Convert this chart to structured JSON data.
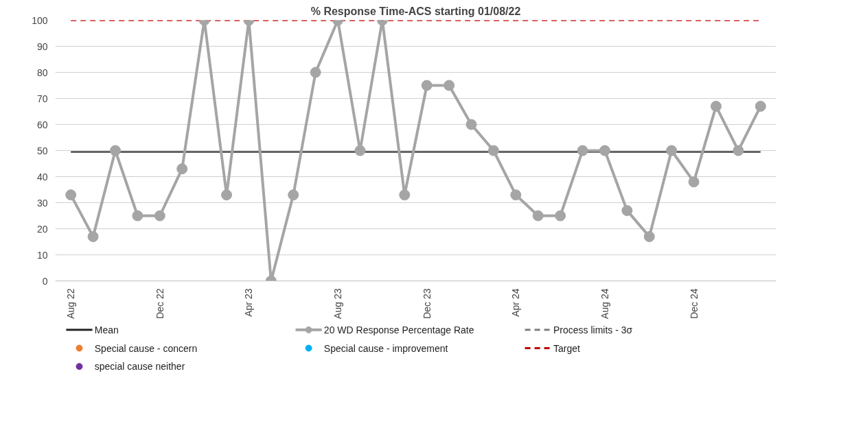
{
  "chart_data": {
    "type": "line",
    "title": "% Response Time-ACS starting 01/08/22",
    "categories": [
      "Aug 22",
      null,
      null,
      null,
      "Dec 22",
      null,
      null,
      null,
      "Apr 23",
      null,
      null,
      null,
      "Aug 23",
      null,
      null,
      null,
      "Dec 23",
      null,
      null,
      null,
      "Apr 24",
      null,
      null,
      null,
      "Aug 24",
      null,
      null,
      null,
      "Dec 24",
      null,
      null,
      null
    ],
    "series": [
      {
        "name": "20 WD Response Percentage Rate",
        "marker": "circle",
        "color": "#a5a5a5",
        "values": [
          33,
          17,
          50,
          25,
          25,
          43,
          100,
          33,
          100,
          0,
          33,
          80,
          100,
          50,
          100,
          33,
          75,
          75,
          60,
          50,
          33,
          25,
          25,
          50,
          50,
          27,
          17,
          50,
          38,
          67,
          50,
          67
        ]
      },
      {
        "name": "Process limits - 3σ",
        "type": "line",
        "marker": "none",
        "line_style": "dashed",
        "color": "#7f7f7f",
        "values": [
          null,
          null,
          null,
          null,
          null,
          null,
          null,
          null,
          null,
          null,
          null,
          null,
          null,
          null,
          null,
          null,
          null,
          null,
          null,
          null,
          null,
          null,
          null,
          null,
          null,
          null,
          null,
          null,
          null,
          null,
          null,
          null
        ]
      },
      {
        "name": "Special cause - concern",
        "type": "scatter",
        "marker": "circle",
        "color": "#ed7d31",
        "values": [
          null,
          null,
          null,
          null,
          null,
          null,
          null,
          null,
          null,
          null,
          null,
          null,
          null,
          null,
          null,
          null,
          null,
          null,
          null,
          null,
          null,
          null,
          null,
          null,
          null,
          null,
          null,
          null,
          null,
          null,
          null,
          null
        ]
      },
      {
        "name": "Special cause  - improvement",
        "type": "scatter",
        "marker": "circle",
        "color": "#00b0f0",
        "values": [
          null,
          null,
          null,
          null,
          null,
          null,
          null,
          null,
          null,
          null,
          null,
          null,
          null,
          null,
          null,
          null,
          null,
          null,
          null,
          null,
          null,
          null,
          null,
          null,
          null,
          null,
          null,
          null,
          null,
          null,
          null,
          null
        ]
      },
      {
        "name": "special cause neither",
        "type": "scatter",
        "marker": "circle",
        "color": "#7030a0",
        "values": [
          null,
          null,
          null,
          null,
          null,
          null,
          null,
          null,
          null,
          null,
          null,
          null,
          null,
          null,
          null,
          null,
          null,
          null,
          null,
          null,
          null,
          null,
          null,
          null,
          null,
          null,
          null,
          null,
          null,
          null,
          null,
          null
        ]
      }
    ],
    "ref_lines": [
      {
        "axis": "y",
        "value": 49.5,
        "label": "Mean",
        "color": "#262626",
        "line_style": "solid"
      },
      {
        "axis": "y",
        "value": 100,
        "label": "Target",
        "color": "#c00000",
        "line_style": "dashed"
      }
    ],
    "ylim": [
      0,
      100
    ],
    "yticks": [
      0,
      10,
      20,
      30,
      40,
      50,
      60,
      70,
      80,
      90,
      100
    ],
    "grid": "y",
    "legend": "bottom"
  }
}
